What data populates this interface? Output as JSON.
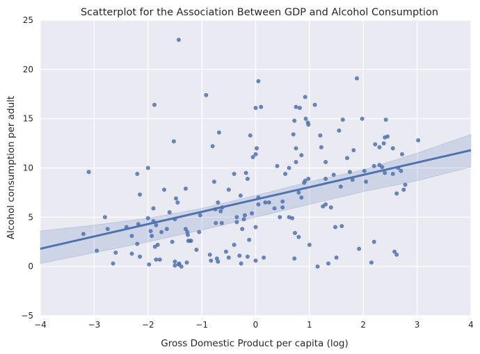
{
  "colors": {
    "plot_background": "#eaeaf2",
    "grid": "#ffffff",
    "point": "#4c72b0",
    "line": "#4c72b0",
    "band": "#4c72b0"
  },
  "chart_data": {
    "type": "scatter",
    "title": "Scatterplot for the Association Between GDP and Alcohol Consumption",
    "xlabel": "Gross Domestic Product per capita (log)",
    "ylabel": "Alcohol consumption per adult",
    "xlim": [
      -4,
      4
    ],
    "ylim": [
      -5,
      25
    ],
    "xticks": [
      -4,
      -3,
      -2,
      -1,
      0,
      1,
      2,
      3,
      4
    ],
    "yticks": [
      -5,
      0,
      5,
      10,
      15,
      20,
      25
    ],
    "grid": true,
    "legend": "none",
    "regression_line": {
      "x": [
        -4,
        4
      ],
      "y": [
        1.8,
        11.8
      ]
    },
    "confidence_band": {
      "x": [
        -4,
        -3,
        -2,
        -1,
        0,
        1,
        2,
        3,
        4
      ],
      "upper": [
        3.6,
        4.2,
        4.9,
        5.9,
        7.2,
        8.6,
        9.8,
        11.5,
        13.4
      ],
      "lower": [
        0.3,
        1.4,
        2.5,
        3.7,
        5.0,
        6.3,
        7.6,
        8.7,
        10.1
      ]
    },
    "points": [
      [
        -3.2,
        3.3
      ],
      [
        -3.1,
        9.6
      ],
      [
        -2.95,
        1.6
      ],
      [
        -2.8,
        5.0
      ],
      [
        -2.75,
        3.8
      ],
      [
        -2.65,
        0.3
      ],
      [
        -2.6,
        1.4
      ],
      [
        -2.4,
        4.0
      ],
      [
        -2.3,
        1.3
      ],
      [
        -2.3,
        3.1
      ],
      [
        -2.2,
        9.4
      ],
      [
        -2.2,
        2.3
      ],
      [
        -2.18,
        4.3
      ],
      [
        -2.15,
        7.3
      ],
      [
        -2.15,
        1.0
      ],
      [
        -2.0,
        4.9
      ],
      [
        -2.0,
        10.0
      ],
      [
        -1.98,
        0.2
      ],
      [
        -1.95,
        3.6
      ],
      [
        -1.93,
        3.1
      ],
      [
        -1.9,
        5.9
      ],
      [
        -1.9,
        4.6
      ],
      [
        -1.88,
        16.4
      ],
      [
        -1.87,
        2.0
      ],
      [
        -1.85,
        0.7
      ],
      [
        -1.85,
        4.2
      ],
      [
        -1.82,
        2.2
      ],
      [
        -1.78,
        0.7
      ],
      [
        -1.75,
        3.5
      ],
      [
        -1.7,
        7.8
      ],
      [
        -1.65,
        3.8
      ],
      [
        -1.6,
        5.5
      ],
      [
        -1.55,
        2.5
      ],
      [
        -1.52,
        12.7
      ],
      [
        -1.5,
        4.8
      ],
      [
        -1.5,
        0.5
      ],
      [
        -1.5,
        0.1
      ],
      [
        -1.48,
        6.9
      ],
      [
        -1.45,
        6.5
      ],
      [
        -1.43,
        0.2
      ],
      [
        -1.43,
        23.0
      ],
      [
        -1.42,
        0.3
      ],
      [
        -1.38,
        0.0
      ],
      [
        -1.3,
        7.9
      ],
      [
        -1.3,
        3.8
      ],
      [
        -1.28,
        0.4
      ],
      [
        -1.27,
        3.5
      ],
      [
        -1.26,
        3.2
      ],
      [
        -1.25,
        2.6
      ],
      [
        -1.22,
        2.6
      ],
      [
        -1.2,
        2.6
      ],
      [
        -1.1,
        1.7
      ],
      [
        -1.05,
        3.5
      ],
      [
        -1.03,
        5.2
      ],
      [
        -0.92,
        17.4
      ],
      [
        -0.85,
        1.2
      ],
      [
        -0.83,
        0.6
      ],
      [
        -0.8,
        12.2
      ],
      [
        -0.77,
        8.6
      ],
      [
        -0.75,
        5.8
      ],
      [
        -0.74,
        4.4
      ],
      [
        -0.72,
        0.8
      ],
      [
        -0.7,
        6.5
      ],
      [
        -0.7,
        0.5
      ],
      [
        -0.68,
        13.6
      ],
      [
        -0.65,
        5.6
      ],
      [
        -0.63,
        4.4
      ],
      [
        -0.62,
        6.0
      ],
      [
        -0.55,
        1.5
      ],
      [
        -0.5,
        7.8
      ],
      [
        -0.5,
        0.9
      ],
      [
        -0.4,
        9.4
      ],
      [
        -0.4,
        2.2
      ],
      [
        -0.35,
        4.5
      ],
      [
        -0.35,
        5.0
      ],
      [
        -0.3,
        1.1
      ],
      [
        -0.28,
        7.2
      ],
      [
        -0.27,
        0.3
      ],
      [
        -0.25,
        3.8
      ],
      [
        -0.22,
        4.8
      ],
      [
        -0.2,
        5.2
      ],
      [
        -0.18,
        9.5
      ],
      [
        -0.15,
        1.0
      ],
      [
        -0.15,
        8.9
      ],
      [
        -0.12,
        2.7
      ],
      [
        -0.1,
        13.3
      ],
      [
        -0.07,
        5.4
      ],
      [
        -0.05,
        11.1
      ],
      [
        0.0,
        11.4
      ],
      [
        0.0,
        16.1
      ],
      [
        0.02,
        12.0
      ],
      [
        0.05,
        18.8
      ],
      [
        0.1,
        16.2
      ],
      [
        0.05,
        7.0
      ],
      [
        0.05,
        6.3
      ],
      [
        0.0,
        4.0
      ],
      [
        0.0,
        0.6
      ],
      [
        0.15,
        0.9
      ],
      [
        0.18,
        6.5
      ],
      [
        0.25,
        6.5
      ],
      [
        0.35,
        5.9
      ],
      [
        0.4,
        10.2
      ],
      [
        0.45,
        5.0
      ],
      [
        0.5,
        6.6
      ],
      [
        0.5,
        6.0
      ],
      [
        0.55,
        9.4
      ],
      [
        0.62,
        10.0
      ],
      [
        0.62,
        5.0
      ],
      [
        0.68,
        4.9
      ],
      [
        0.7,
        13.4
      ],
      [
        0.72,
        14.8
      ],
      [
        0.72,
        0.8
      ],
      [
        0.73,
        3.4
      ],
      [
        0.75,
        12.0
      ],
      [
        0.75,
        10.6
      ],
      [
        0.75,
        16.2
      ],
      [
        0.8,
        7.5
      ],
      [
        0.8,
        3.0
      ],
      [
        0.82,
        16.1
      ],
      [
        0.85,
        11.3
      ],
      [
        0.85,
        7.0
      ],
      [
        0.9,
        8.5
      ],
      [
        0.92,
        8.7
      ],
      [
        0.93,
        15.0
      ],
      [
        0.92,
        17.2
      ],
      [
        0.97,
        14.6
      ],
      [
        0.98,
        14.4
      ],
      [
        0.98,
        8.9
      ],
      [
        1.0,
        2.2
      ],
      [
        1.1,
        16.4
      ],
      [
        1.15,
        0.0
      ],
      [
        1.2,
        13.3
      ],
      [
        1.22,
        12.1
      ],
      [
        1.25,
        6.1
      ],
      [
        1.3,
        8.9
      ],
      [
        1.3,
        6.3
      ],
      [
        1.3,
        10.6
      ],
      [
        1.35,
        0.3
      ],
      [
        1.4,
        6.0
      ],
      [
        1.45,
        9.3
      ],
      [
        1.48,
        4.0
      ],
      [
        1.5,
        0.9
      ],
      [
        1.55,
        13.8
      ],
      [
        1.58,
        8.1
      ],
      [
        1.6,
        4.1
      ],
      [
        1.62,
        14.9
      ],
      [
        1.7,
        11.0
      ],
      [
        1.75,
        9.6
      ],
      [
        1.8,
        8.8
      ],
      [
        1.82,
        11.8
      ],
      [
        1.88,
        19.1
      ],
      [
        1.92,
        1.8
      ],
      [
        1.98,
        15.0
      ],
      [
        2.02,
        9.7
      ],
      [
        2.05,
        8.6
      ],
      [
        2.15,
        0.4
      ],
      [
        2.2,
        10.2
      ],
      [
        2.22,
        12.4
      ],
      [
        2.2,
        2.5
      ],
      [
        2.3,
        12.1
      ],
      [
        2.3,
        10.3
      ],
      [
        2.35,
        10.1
      ],
      [
        2.38,
        12.5
      ],
      [
        2.4,
        9.5
      ],
      [
        2.4,
        13.1
      ],
      [
        2.42,
        14.9
      ],
      [
        2.45,
        13.2
      ],
      [
        2.55,
        12.0
      ],
      [
        2.55,
        9.4
      ],
      [
        2.58,
        1.5
      ],
      [
        2.62,
        7.4
      ],
      [
        2.62,
        1.2
      ],
      [
        2.65,
        10.0
      ],
      [
        2.7,
        9.7
      ],
      [
        2.72,
        11.4
      ],
      [
        2.75,
        7.8
      ],
      [
        2.78,
        8.3
      ],
      [
        3.02,
        12.8
      ]
    ]
  }
}
